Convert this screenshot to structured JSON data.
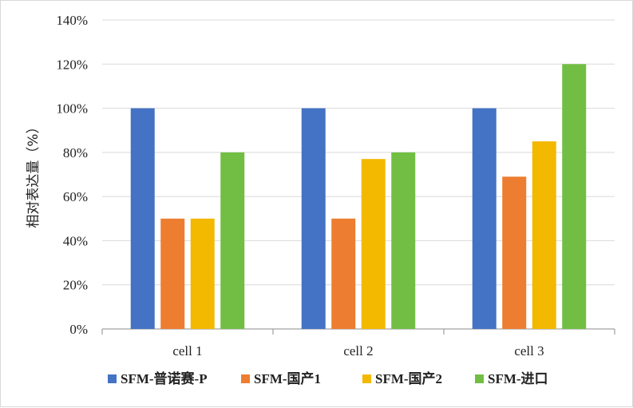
{
  "chart_data": {
    "type": "bar",
    "title": "",
    "xlabel": "",
    "ylabel": "相对表达量（%）",
    "categories": [
      "cell 1",
      "cell 2",
      "cell 3"
    ],
    "series": [
      {
        "name": "SFM-普诺赛-P",
        "color": "#4472C4",
        "values": [
          100,
          100,
          100
        ]
      },
      {
        "name": "SFM-国产1",
        "color": "#ED7D31",
        "values": [
          50,
          50,
          69
        ]
      },
      {
        "name": "SFM-国产2",
        "color": "#F3B800",
        "values": [
          50,
          77,
          85
        ]
      },
      {
        "name": "SFM-进口",
        "color": "#72BE44",
        "values": [
          80,
          80,
          120
        ]
      }
    ],
    "ylim": [
      0,
      140
    ],
    "yticks": [
      0,
      20,
      40,
      60,
      80,
      100,
      120,
      140
    ],
    "ytick_labels": [
      "0%",
      "20%",
      "40%",
      "60%",
      "80%",
      "100%",
      "120%",
      "140%"
    ],
    "grid": true,
    "legend_position": "bottom"
  }
}
